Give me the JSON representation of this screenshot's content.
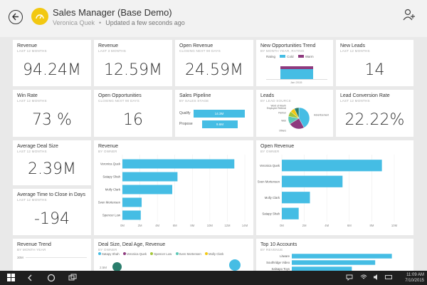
{
  "header": {
    "title": "Sales Manager (Base Demo)",
    "owner": "Veronica Quek",
    "updated": "Updated a few seconds ago"
  },
  "tiles": {
    "revenue": {
      "title": "Revenue",
      "sub": "LAST 12 MONTHS",
      "value": "94.24M"
    },
    "revenue3": {
      "title": "Revenue",
      "sub": "LAST 3 MONTHS",
      "value": "12.59M"
    },
    "open_revenue": {
      "title": "Open Revenue",
      "sub": "CLOSING NEXT 90 DAYS",
      "value": "24.59M"
    },
    "new_opps": {
      "title": "New Opportunities Trend",
      "sub": "BY MONTH YEAR, RATING",
      "legend_label": "Rating",
      "legend": [
        "Cold",
        "Warm"
      ],
      "x_label": "Jan 2015"
    },
    "new_leads": {
      "title": "New Leads",
      "sub": "LAST 12 MONTHS",
      "value": "14"
    },
    "win_rate": {
      "title": "Win Rate",
      "sub": "LAST 12 MONTHS",
      "value": "73 %"
    },
    "open_opps": {
      "title": "Open Opportunities",
      "sub": "CLOSING NEXT 90 DAYS",
      "value": "16"
    },
    "pipeline": {
      "title": "Sales Pipeline",
      "sub": "BY SALES STAGE",
      "stages": [
        {
          "label": "Qualify",
          "value": "14.3M"
        },
        {
          "label": "Propose",
          "value": "9.6M"
        }
      ]
    },
    "leads": {
      "title": "Leads",
      "sub": "BY LEAD SOURCE",
      "slices": [
        {
          "label": "Advertisement",
          "value": 42
        },
        {
          "label": "Others",
          "value": 24
        },
        {
          "label": "Web",
          "value": 12
        },
        {
          "label": "Partner",
          "value": 8
        },
        {
          "label": "Employee Referral",
          "value": 7
        },
        {
          "label": "Word of Mouth",
          "value": 7
        }
      ]
    },
    "conversion": {
      "title": "Lead Conversion Rate",
      "sub": "LAST 12 MONTHS",
      "value": "22.22%"
    },
    "deal_size": {
      "title": "Average Deal Size",
      "sub": "LAST 12 MONTHS",
      "value": "2.39M"
    },
    "time_close": {
      "title": "Average Time to Close in Days",
      "sub": "LAST 12 MONTHS",
      "value": "-194"
    },
    "revenue_owner": {
      "title": "Revenue",
      "sub": "BY OWNER"
    },
    "open_rev_owner": {
      "title": "Open Revenue",
      "sub": "BY OWNER"
    },
    "revenue_trend": {
      "title": "Revenue Trend",
      "sub": "BY MONTH YEAR",
      "y_label": "30M"
    },
    "deal_age": {
      "title": "Deal Size, Deal Age, Revenue",
      "sub": "BY OWNER",
      "legend": [
        "Satapy Shah",
        "Veronica Quek",
        "Spencer Low",
        "Sven Mortensen",
        "Molly Clark"
      ],
      "y_label": "2.5M"
    },
    "top_accounts": {
      "title": "Top 10 Accounts",
      "sub": "BY REVENUE",
      "accounts": [
        "Litware",
        "Southridge Video",
        "Salsapo Toys"
      ]
    }
  },
  "chart_data": [
    {
      "type": "bar",
      "title": "Revenue",
      "categories": [
        "Veronica Quek",
        "Satapy Shah",
        "Molly Clark",
        "Sven Mortensen",
        "Spencer Low"
      ],
      "values": [
        12.8,
        6.3,
        5.7,
        2.2,
        2.1
      ],
      "xlim": [
        0,
        14
      ],
      "ticks": [
        "0M",
        "2M",
        "4M",
        "6M",
        "8M",
        "10M",
        "12M",
        "14M"
      ]
    },
    {
      "type": "bar",
      "title": "Open Revenue",
      "categories": [
        "Veronica Quek",
        "Sven Mortensen",
        "Molly Clark",
        "Satapy Shah"
      ],
      "values": [
        8.9,
        5.4,
        2.5,
        1.5
      ],
      "xlim": [
        0,
        10
      ],
      "ticks": [
        "0M",
        "2M",
        "4M",
        "6M",
        "8M",
        "10M"
      ]
    },
    {
      "type": "bar",
      "title": "Top 10 Accounts",
      "categories": [
        "Litware",
        "Southridge Video",
        "Salsapo Toys"
      ],
      "values": [
        15,
        12.5,
        9
      ],
      "xlim": [
        0,
        16
      ]
    }
  ],
  "colors": {
    "accent": "#45bde4",
    "cold": "#45bde4",
    "warm": "#8e3a7e",
    "gold": "#f2c811"
  },
  "taskbar": {
    "time": "11:09 AM",
    "date": "7/10/2015"
  }
}
